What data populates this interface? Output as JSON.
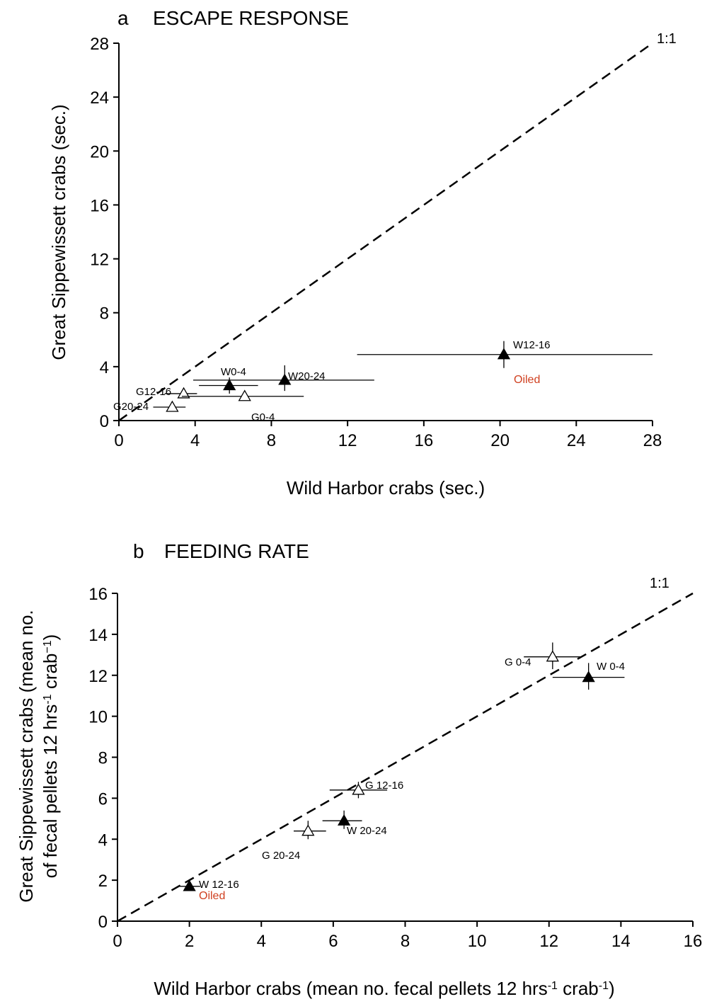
{
  "chart_data": [
    {
      "type": "scatter",
      "panel": "a",
      "title": "ESCAPE RESPONSE",
      "xlabel": "Wild Harbor crabs (sec.)",
      "ylabel": "Great Sippewissett crabs (sec.)",
      "xlim": [
        0,
        28
      ],
      "ylim": [
        0,
        28
      ],
      "xticks": [
        0,
        4,
        8,
        12,
        16,
        20,
        24,
        28
      ],
      "yticks": [
        0,
        4,
        8,
        12,
        16,
        20,
        24,
        28
      ],
      "reference_line_label": "1:1",
      "points": [
        {
          "label": "W0-4",
          "x": 5.8,
          "y": 2.6,
          "x_err": [
            4.2,
            7.3
          ],
          "y_err": [
            2.0,
            3.2
          ],
          "filled": true
        },
        {
          "label": "W20-24",
          "x": 8.7,
          "y": 3.0,
          "x_err": [
            3.9,
            13.4
          ],
          "y_err": [
            2.2,
            4.1
          ],
          "filled": true
        },
        {
          "label": "W12-16",
          "x": 20.2,
          "y": 4.9,
          "x_err": [
            12.5,
            28.0
          ],
          "y_err": [
            3.9,
            5.9
          ],
          "filled": true
        },
        {
          "label": "G12-16",
          "x": 3.4,
          "y": 2.0,
          "x_err": [
            2.4,
            4.1
          ],
          "y_err": [
            1.8,
            2.2
          ],
          "filled": false
        },
        {
          "label": "G0-4",
          "x": 6.6,
          "y": 1.8,
          "x_err": [
            3.3,
            9.7
          ],
          "y_err": [
            1.6,
            2.0
          ],
          "filled": false
        },
        {
          "label": "G20-24",
          "x": 2.8,
          "y": 1.0,
          "x_err": [
            1.8,
            3.5
          ],
          "y_err": [
            0.8,
            1.2
          ],
          "filled": false
        }
      ],
      "annotation": "Oiled"
    },
    {
      "type": "scatter",
      "panel": "b",
      "title": "FEEDING RATE",
      "xlabel_main": "Wild Harbor crabs (mean no. fecal pellets 12 hrs",
      "xlabel_sup1": "-1",
      "xlabel_mid": " crab",
      "xlabel_sup2": "-1",
      "xlabel_end": ")",
      "ylabel_line1": "Great Sippewissett crabs (mean no.",
      "ylabel_line2_main": "of fecal pellets 12 hrs",
      "ylabel_line2_sup1": "-1",
      "ylabel_line2_mid": " crab",
      "ylabel_line2_sup2": "−1",
      "ylabel_line2_end": ")",
      "xlim": [
        0,
        16
      ],
      "ylim": [
        0,
        16
      ],
      "xticks": [
        0,
        2,
        4,
        6,
        8,
        10,
        12,
        14,
        16
      ],
      "yticks": [
        0,
        2,
        4,
        6,
        8,
        10,
        12,
        14,
        16
      ],
      "reference_line_label": "1:1",
      "points": [
        {
          "label": "G 0-4",
          "x": 12.1,
          "y": 12.9,
          "x_err": [
            11.3,
            12.9
          ],
          "y_err": [
            12.3,
            13.6
          ],
          "filled": false
        },
        {
          "label": "W 0-4",
          "x": 13.1,
          "y": 11.9,
          "x_err": [
            12.1,
            14.1
          ],
          "y_err": [
            11.3,
            12.6
          ],
          "filled": true
        },
        {
          "label": "G 12-16",
          "x": 6.7,
          "y": 6.4,
          "x_err": [
            5.9,
            7.5
          ],
          "y_err": [
            6.0,
            6.8
          ],
          "filled": false
        },
        {
          "label": "W 20-24",
          "x": 6.3,
          "y": 4.9,
          "x_err": [
            5.7,
            6.8
          ],
          "y_err": [
            4.5,
            5.4
          ],
          "filled": true
        },
        {
          "label": "G 20-24",
          "x": 5.3,
          "y": 4.4,
          "x_err": [
            4.9,
            5.8
          ],
          "y_err": [
            4.0,
            4.9
          ],
          "filled": false
        },
        {
          "label": "W 12-16",
          "x": 2.0,
          "y": 1.7,
          "x_err": [
            1.7,
            2.3
          ],
          "y_err": [
            1.5,
            1.9
          ],
          "filled": true
        }
      ],
      "annotation": "Oiled"
    }
  ],
  "panel_a_letter": "a",
  "panel_b_letter": "b"
}
